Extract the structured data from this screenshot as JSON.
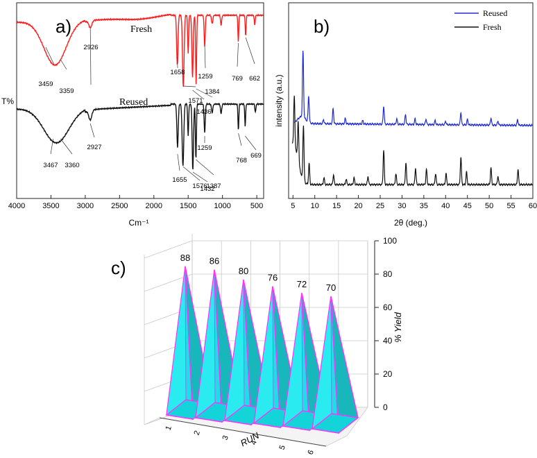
{
  "chart_data": [
    {
      "panel_label": "a)",
      "type": "line",
      "chart_kind": "FTIR spectra",
      "xlabel": "Cm⁻¹",
      "ylabel": "T%",
      "xlim": [
        4000,
        400
      ],
      "xticks": [
        4000,
        3500,
        3000,
        2500,
        2000,
        1500,
        1000,
        500
      ],
      "series": [
        {
          "name": "Fresh",
          "color": "#ff1a1a",
          "peaks": [
            {
              "x": 3459,
              "label": "3459"
            },
            {
              "x": 3359,
              "label": "3359"
            },
            {
              "x": 2926,
              "label": "2926"
            },
            {
              "x": 1658,
              "label": "1658"
            },
            {
              "x": 1571,
              "label": "1571"
            },
            {
              "x": 1436,
              "label": "1436"
            },
            {
              "x": 1384,
              "label": "1384"
            },
            {
              "x": 1259,
              "label": "1259"
            },
            {
              "x": 769,
              "label": "769"
            },
            {
              "x": 662,
              "label": "662"
            }
          ]
        },
        {
          "name": "Reused",
          "color": "#111111",
          "peaks": [
            {
              "x": 3467,
              "label": "3467"
            },
            {
              "x": 3360,
              "label": "3360"
            },
            {
              "x": 2927,
              "label": "2927"
            },
            {
              "x": 1655,
              "label": "1655"
            },
            {
              "x": 1576,
              "label": "1576"
            },
            {
              "x": 1432,
              "label": "1432"
            },
            {
              "x": 1387,
              "label": "1387"
            },
            {
              "x": 1259,
              "label": "1259"
            },
            {
              "x": 768,
              "label": "768"
            },
            {
              "x": 669,
              "label": "669"
            }
          ]
        }
      ]
    },
    {
      "panel_label": "b)",
      "type": "line",
      "chart_kind": "PXRD patterns",
      "xlabel": "2θ (deg.)",
      "ylabel": "intensity (a.u.)",
      "xlim": [
        4,
        60
      ],
      "xticks": [
        5,
        10,
        15,
        20,
        25,
        30,
        35,
        40,
        45,
        50,
        55,
        60
      ],
      "legend": "top-right",
      "series": [
        {
          "name": "Reused",
          "color": "#1f2bd6",
          "peaks": [
            7.3,
            8.6,
            12.0,
            14.2,
            17.0,
            21.0,
            25.8,
            28.8,
            30.8,
            33.0,
            35.5,
            37.6,
            40.0,
            43.5,
            45.0,
            50.4,
            52.0,
            56.5
          ]
        },
        {
          "name": "Fresh",
          "color": "#111111",
          "peaks": [
            5.3,
            6.2,
            7.4,
            8.7,
            12.1,
            14.3,
            17.2,
            19.0,
            22.2,
            25.8,
            28.6,
            30.9,
            33.1,
            35.6,
            37.7,
            40.1,
            43.5,
            44.8,
            50.4,
            52.0,
            56.6
          ]
        }
      ]
    },
    {
      "panel_label": "c)",
      "type": "bar",
      "chart_kind": "3D pyramid bar chart",
      "categories": [
        "1",
        "2",
        "3",
        "4",
        "5",
        "6"
      ],
      "values": [
        88,
        86,
        80,
        76,
        72,
        70
      ],
      "xlabel": "RUN",
      "ylabel": "% Yield",
      "ylim": [
        0,
        100
      ],
      "yticks": [
        0,
        20,
        40,
        60,
        80,
        100
      ],
      "bar_color": "#19e0e6",
      "edge_color": "#ff33ff"
    }
  ]
}
